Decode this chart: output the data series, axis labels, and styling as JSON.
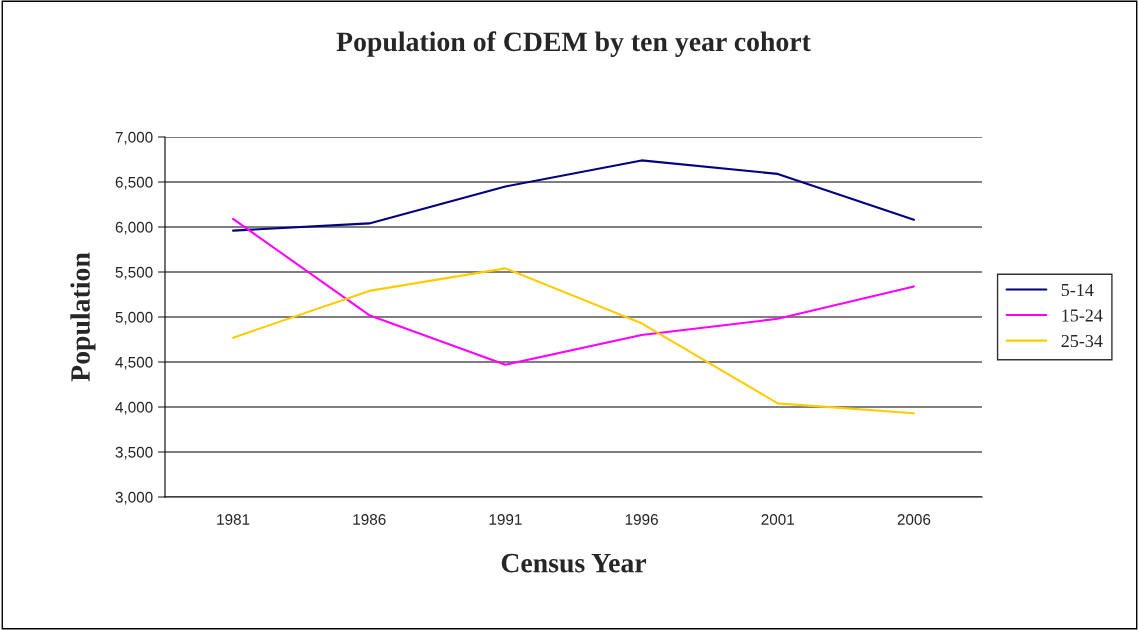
{
  "chart_data": {
    "type": "line",
    "title": "Population of CDEM by ten year cohort",
    "xlabel": "Census Year",
    "ylabel": "Population",
    "categories": [
      "1981",
      "1986",
      "1991",
      "1996",
      "2001",
      "2006"
    ],
    "series": [
      {
        "name": "5-14",
        "color": "#000080",
        "values": [
          5960,
          6040,
          6450,
          6740,
          6590,
          6080
        ]
      },
      {
        "name": "15-24",
        "color": "#ff00ff",
        "values": [
          6090,
          5020,
          4470,
          4800,
          4980,
          5340
        ]
      },
      {
        "name": "25-34",
        "color": "#ffcc00",
        "values": [
          4770,
          5290,
          5540,
          4930,
          4040,
          3930
        ]
      }
    ],
    "ylim": [
      3000,
      7000
    ],
    "yticks": [
      {
        "value": 3000,
        "label": "3,000"
      },
      {
        "value": 3500,
        "label": "3,500"
      },
      {
        "value": 4000,
        "label": "4,000"
      },
      {
        "value": 4500,
        "label": "4,500"
      },
      {
        "value": 5000,
        "label": "5,000"
      },
      {
        "value": 5500,
        "label": "5,500"
      },
      {
        "value": 6000,
        "label": "6,000"
      },
      {
        "value": 6500,
        "label": "6,500"
      },
      {
        "value": 7000,
        "label": "7,000"
      }
    ],
    "grid": "y",
    "legend": "right",
    "marker": "none",
    "line_style": "solid"
  }
}
